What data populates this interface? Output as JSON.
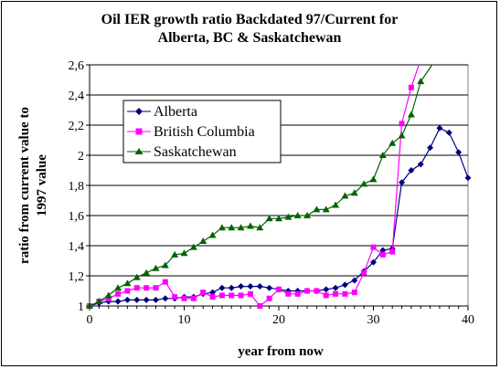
{
  "chart_data": {
    "type": "line",
    "title_line1": "Oil IER growth ratio Backdated 97/Current for",
    "title_line2": "Alberta, BC & Saskatchewan",
    "xlabel": "year from now",
    "ylabel_line1": "ratio from current value to",
    "ylabel_line2": "1997 value",
    "xlim": [
      0,
      40
    ],
    "ylim": [
      1,
      2.6
    ],
    "x_ticks": [
      0,
      10,
      20,
      30,
      40
    ],
    "y_ticks": [
      1,
      1.2,
      1.4,
      1.6,
      1.8,
      2,
      2.2,
      2.4,
      2.6
    ],
    "y_tick_labels": [
      "1",
      "1,2",
      "1,4",
      "1,6",
      "1,8",
      "2",
      "2,2",
      "2,4",
      "2,6"
    ],
    "grid": "horizontal",
    "legend_position": "upper-left",
    "series": [
      {
        "name": "Alberta",
        "color": "#000080",
        "marker": "diamond",
        "x": [
          0,
          1,
          2,
          3,
          4,
          5,
          6,
          7,
          8,
          9,
          10,
          11,
          12,
          13,
          14,
          15,
          16,
          17,
          18,
          19,
          20,
          21,
          22,
          23,
          24,
          25,
          26,
          27,
          28,
          29,
          30,
          31,
          32,
          33,
          34,
          35,
          36,
          37,
          38,
          39,
          40
        ],
        "y": [
          1.0,
          1.02,
          1.03,
          1.03,
          1.04,
          1.04,
          1.04,
          1.04,
          1.05,
          1.05,
          1.06,
          1.06,
          1.08,
          1.09,
          1.12,
          1.12,
          1.13,
          1.13,
          1.13,
          1.12,
          1.11,
          1.1,
          1.1,
          1.1,
          1.1,
          1.11,
          1.12,
          1.14,
          1.17,
          1.23,
          1.29,
          1.37,
          1.38,
          1.82,
          1.9,
          1.94,
          2.05,
          2.18,
          2.15,
          2.02,
          1.85
        ]
      },
      {
        "name": "British Columbia",
        "color": "#ff00ff",
        "marker": "square",
        "x": [
          0,
          1,
          2,
          3,
          4,
          5,
          6,
          7,
          8,
          9,
          10,
          11,
          12,
          13,
          14,
          15,
          16,
          17,
          18,
          19,
          20,
          21,
          22,
          23,
          24,
          25,
          26,
          27,
          28,
          29,
          30,
          31,
          32,
          33,
          34,
          34.8
        ],
        "y": [
          1.0,
          1.03,
          1.05,
          1.08,
          1.1,
          1.12,
          1.12,
          1.12,
          1.16,
          1.06,
          1.05,
          1.05,
          1.09,
          1.06,
          1.07,
          1.07,
          1.07,
          1.08,
          1.0,
          1.05,
          1.11,
          1.08,
          1.08,
          1.1,
          1.1,
          1.07,
          1.08,
          1.08,
          1.09,
          1.22,
          1.39,
          1.34,
          1.36,
          2.21,
          2.45,
          2.6
        ]
      },
      {
        "name": "Saskatchewan",
        "color": "#006400",
        "marker": "triangle",
        "x": [
          0,
          1,
          2,
          3,
          4,
          5,
          6,
          7,
          8,
          9,
          10,
          11,
          12,
          13,
          14,
          15,
          16,
          17,
          18,
          19,
          20,
          21,
          22,
          23,
          24,
          25,
          26,
          27,
          28,
          29,
          30,
          31,
          32,
          33,
          34,
          35,
          36.2
        ],
        "y": [
          1.0,
          1.03,
          1.07,
          1.12,
          1.15,
          1.19,
          1.22,
          1.25,
          1.27,
          1.34,
          1.35,
          1.39,
          1.43,
          1.47,
          1.52,
          1.52,
          1.52,
          1.53,
          1.52,
          1.58,
          1.58,
          1.59,
          1.6,
          1.6,
          1.64,
          1.64,
          1.67,
          1.73,
          1.75,
          1.81,
          1.84,
          2.0,
          2.08,
          2.13,
          2.27,
          2.49,
          2.6
        ]
      }
    ]
  }
}
